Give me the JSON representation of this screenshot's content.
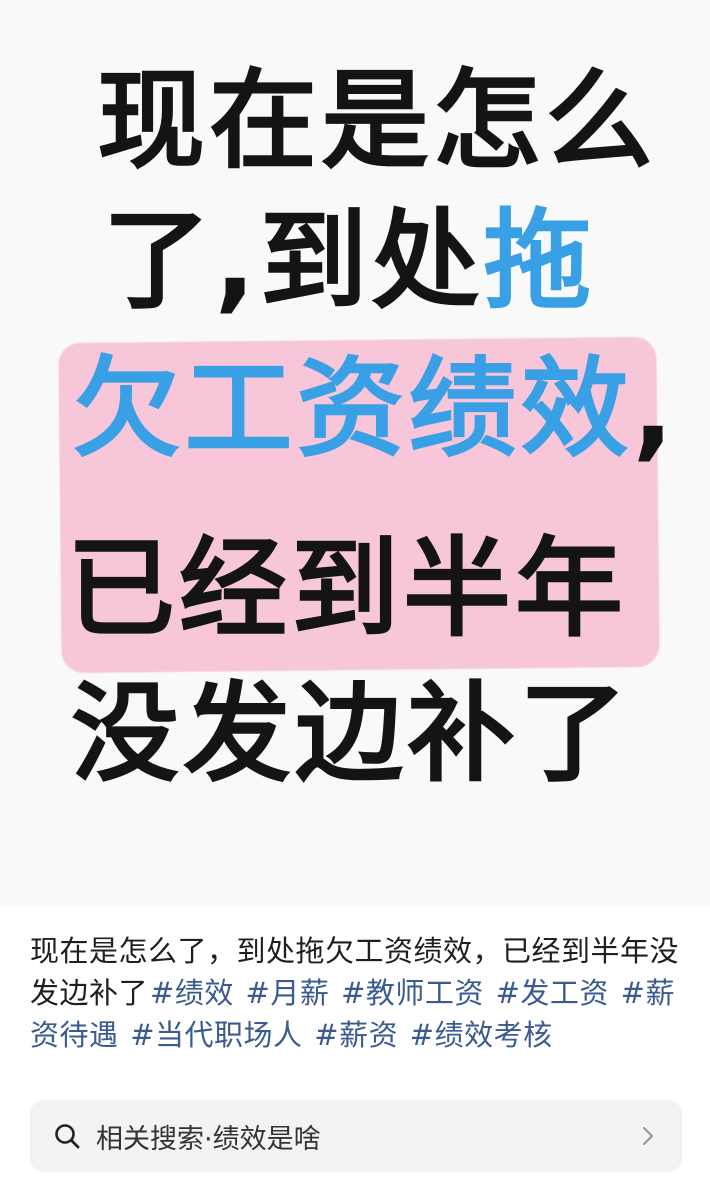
{
  "poster": {
    "lines": [
      {
        "segments": [
          {
            "text": "现在是怎么",
            "color": "#141414"
          }
        ]
      },
      {
        "segments": [
          {
            "text": "了,到处",
            "color": "#141414"
          },
          {
            "text": "拖",
            "color": "#3aa0e6"
          }
        ]
      },
      {
        "segments": [
          {
            "text": "欠工资绩效",
            "color": "#3aa0e6"
          },
          {
            "text": ",",
            "color": "#141414"
          }
        ]
      },
      {
        "segments": [
          {
            "text": "已经到半年",
            "color": "#141414"
          }
        ]
      },
      {
        "segments": [
          {
            "text": "没发边补了",
            "color": "#141414"
          }
        ]
      }
    ],
    "highlight_color": "#f7c6d9"
  },
  "caption": {
    "text": "现在是怎么了，到处拖欠工资绩效，已经到半年没发边补了",
    "tags": [
      "#绩效",
      "#月薪",
      "#教师工资",
      "#发工资",
      "#薪资待遇",
      "#当代职场人",
      "#薪资",
      "#绩效考核"
    ],
    "tag_color": "#3b5a8f"
  },
  "related_search": {
    "label": "相关搜索·绩效是啥",
    "icon": "search-icon",
    "chevron": "chevron-right-icon"
  }
}
